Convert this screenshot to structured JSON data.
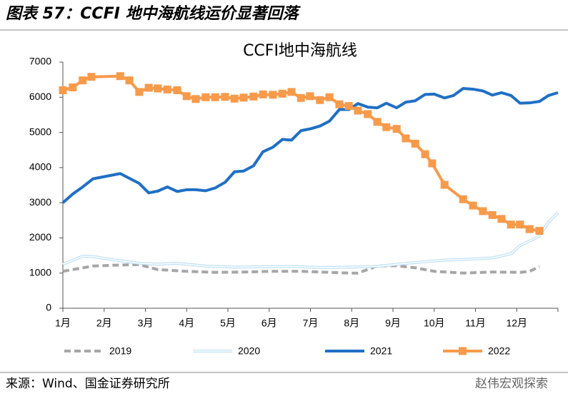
{
  "header": "图表 57：CCFI 地中海航线运价显著回落",
  "source": "来源：Wind、国金证券研究所",
  "watermark": "赵伟宏观探索",
  "chart_data": {
    "type": "line",
    "title": "CCFI地中海航线",
    "xlim": [
      1,
      13
    ],
    "xticks": [
      {
        "value": 1,
        "label": "1月"
      },
      {
        "value": 2,
        "label": "2月"
      },
      {
        "value": 3,
        "label": "3月"
      },
      {
        "value": 4,
        "label": "4月"
      },
      {
        "value": 5,
        "label": "5月"
      },
      {
        "value": 6,
        "label": "6月"
      },
      {
        "value": 7,
        "label": "7月"
      },
      {
        "value": 8,
        "label": "8月"
      },
      {
        "value": 9,
        "label": "9月"
      },
      {
        "value": 10,
        "label": "10月"
      },
      {
        "value": 11,
        "label": "11月"
      },
      {
        "value": 12,
        "label": "12月"
      },
      13
    ],
    "ylim": [
      0,
      7000
    ],
    "yticks": [
      0,
      1000,
      2000,
      3000,
      4000,
      5000,
      6000,
      7000
    ],
    "legend": "bottom",
    "series": [
      {
        "name": "2019",
        "color": "#a6a6a6",
        "style": "dashed",
        "x": [
          1.0,
          1.73,
          2.39,
          2.85,
          3.3,
          4.0,
          4.69,
          5.38,
          6.09,
          6.77,
          7.46,
          7.93,
          8.15,
          8.62,
          9.09,
          9.54,
          10.0,
          10.7,
          11.41,
          12.08,
          12.31,
          12.55
        ],
        "values": [
          1050,
          1200,
          1230,
          1240,
          1100,
          1050,
          1020,
          1030,
          1050,
          1050,
          1020,
          1000,
          1000,
          1200,
          1210,
          1150,
          1050,
          1000,
          1030,
          1020,
          1050,
          1180
        ]
      },
      {
        "name": "2020",
        "color": "#bfe0f4",
        "style": "double",
        "x": [
          1.0,
          1.48,
          1.73,
          2.39,
          2.85,
          3.3,
          3.77,
          4.46,
          5.16,
          5.85,
          6.54,
          7.23,
          7.93,
          8.62,
          9.09,
          9.54,
          10.25,
          10.94,
          11.41,
          11.86,
          12.08,
          12.55,
          12.77,
          13.0
        ],
        "values": [
          1250,
          1480,
          1470,
          1350,
          1280,
          1250,
          1280,
          1200,
          1170,
          1180,
          1190,
          1160,
          1170,
          1190,
          1250,
          1300,
          1370,
          1400,
          1430,
          1550,
          1780,
          2050,
          2450,
          2720
        ]
      },
      {
        "name": "2021",
        "color": "#1f6fc5",
        "style": "solid",
        "x": [
          1.0,
          1.24,
          1.48,
          1.73,
          2.39,
          2.85,
          3.08,
          3.3,
          3.53,
          3.77,
          4.0,
          4.22,
          4.46,
          4.69,
          4.93,
          5.16,
          5.38,
          5.62,
          5.85,
          6.09,
          6.32,
          6.54,
          6.77,
          6.99,
          7.23,
          7.46,
          7.7,
          7.93,
          8.15,
          8.39,
          8.62,
          8.84,
          9.09,
          9.31,
          9.54,
          9.78,
          10.0,
          10.25,
          10.47,
          10.7,
          10.94,
          11.18,
          11.41,
          11.63,
          11.86,
          12.08,
          12.31,
          12.55,
          12.77,
          13.0
        ],
        "values": [
          3000,
          3250,
          3450,
          3680,
          3830,
          3550,
          3280,
          3330,
          3450,
          3320,
          3370,
          3370,
          3340,
          3420,
          3580,
          3880,
          3900,
          4050,
          4450,
          4580,
          4800,
          4780,
          5050,
          5100,
          5180,
          5320,
          5650,
          5650,
          5820,
          5720,
          5700,
          5830,
          5700,
          5860,
          5900,
          6080,
          6090,
          5980,
          6050,
          6250,
          6230,
          6180,
          6060,
          6130,
          6050,
          5830,
          5840,
          5880,
          6050,
          6130
        ]
      },
      {
        "name": "2022",
        "color": "#f79a4a",
        "style": "marker",
        "x": [
          1.0,
          1.24,
          1.48,
          1.69,
          2.39,
          2.61,
          2.85,
          3.08,
          3.3,
          3.53,
          3.77,
          4.0,
          4.22,
          4.46,
          4.69,
          4.93,
          5.16,
          5.38,
          5.62,
          5.85,
          6.09,
          6.32,
          6.54,
          6.77,
          6.99,
          7.23,
          7.46,
          7.7,
          7.93,
          8.15,
          8.39,
          8.62,
          8.84,
          9.09,
          9.31,
          9.54,
          9.78,
          9.95,
          10.25,
          10.7,
          10.94,
          11.18,
          11.41,
          11.63,
          11.86,
          12.08,
          12.31,
          12.55
        ],
        "values": [
          6200,
          6280,
          6480,
          6580,
          6600,
          6480,
          6150,
          6270,
          6250,
          6220,
          6200,
          6030,
          5950,
          6000,
          6000,
          6010,
          5960,
          5990,
          6020,
          6080,
          6070,
          6100,
          6150,
          5980,
          6030,
          5920,
          6000,
          5800,
          5750,
          5620,
          5520,
          5300,
          5150,
          5100,
          4830,
          4680,
          4380,
          4120,
          3510,
          3100,
          2920,
          2760,
          2650,
          2540,
          2380,
          2380,
          2250,
          2200
        ]
      }
    ]
  }
}
